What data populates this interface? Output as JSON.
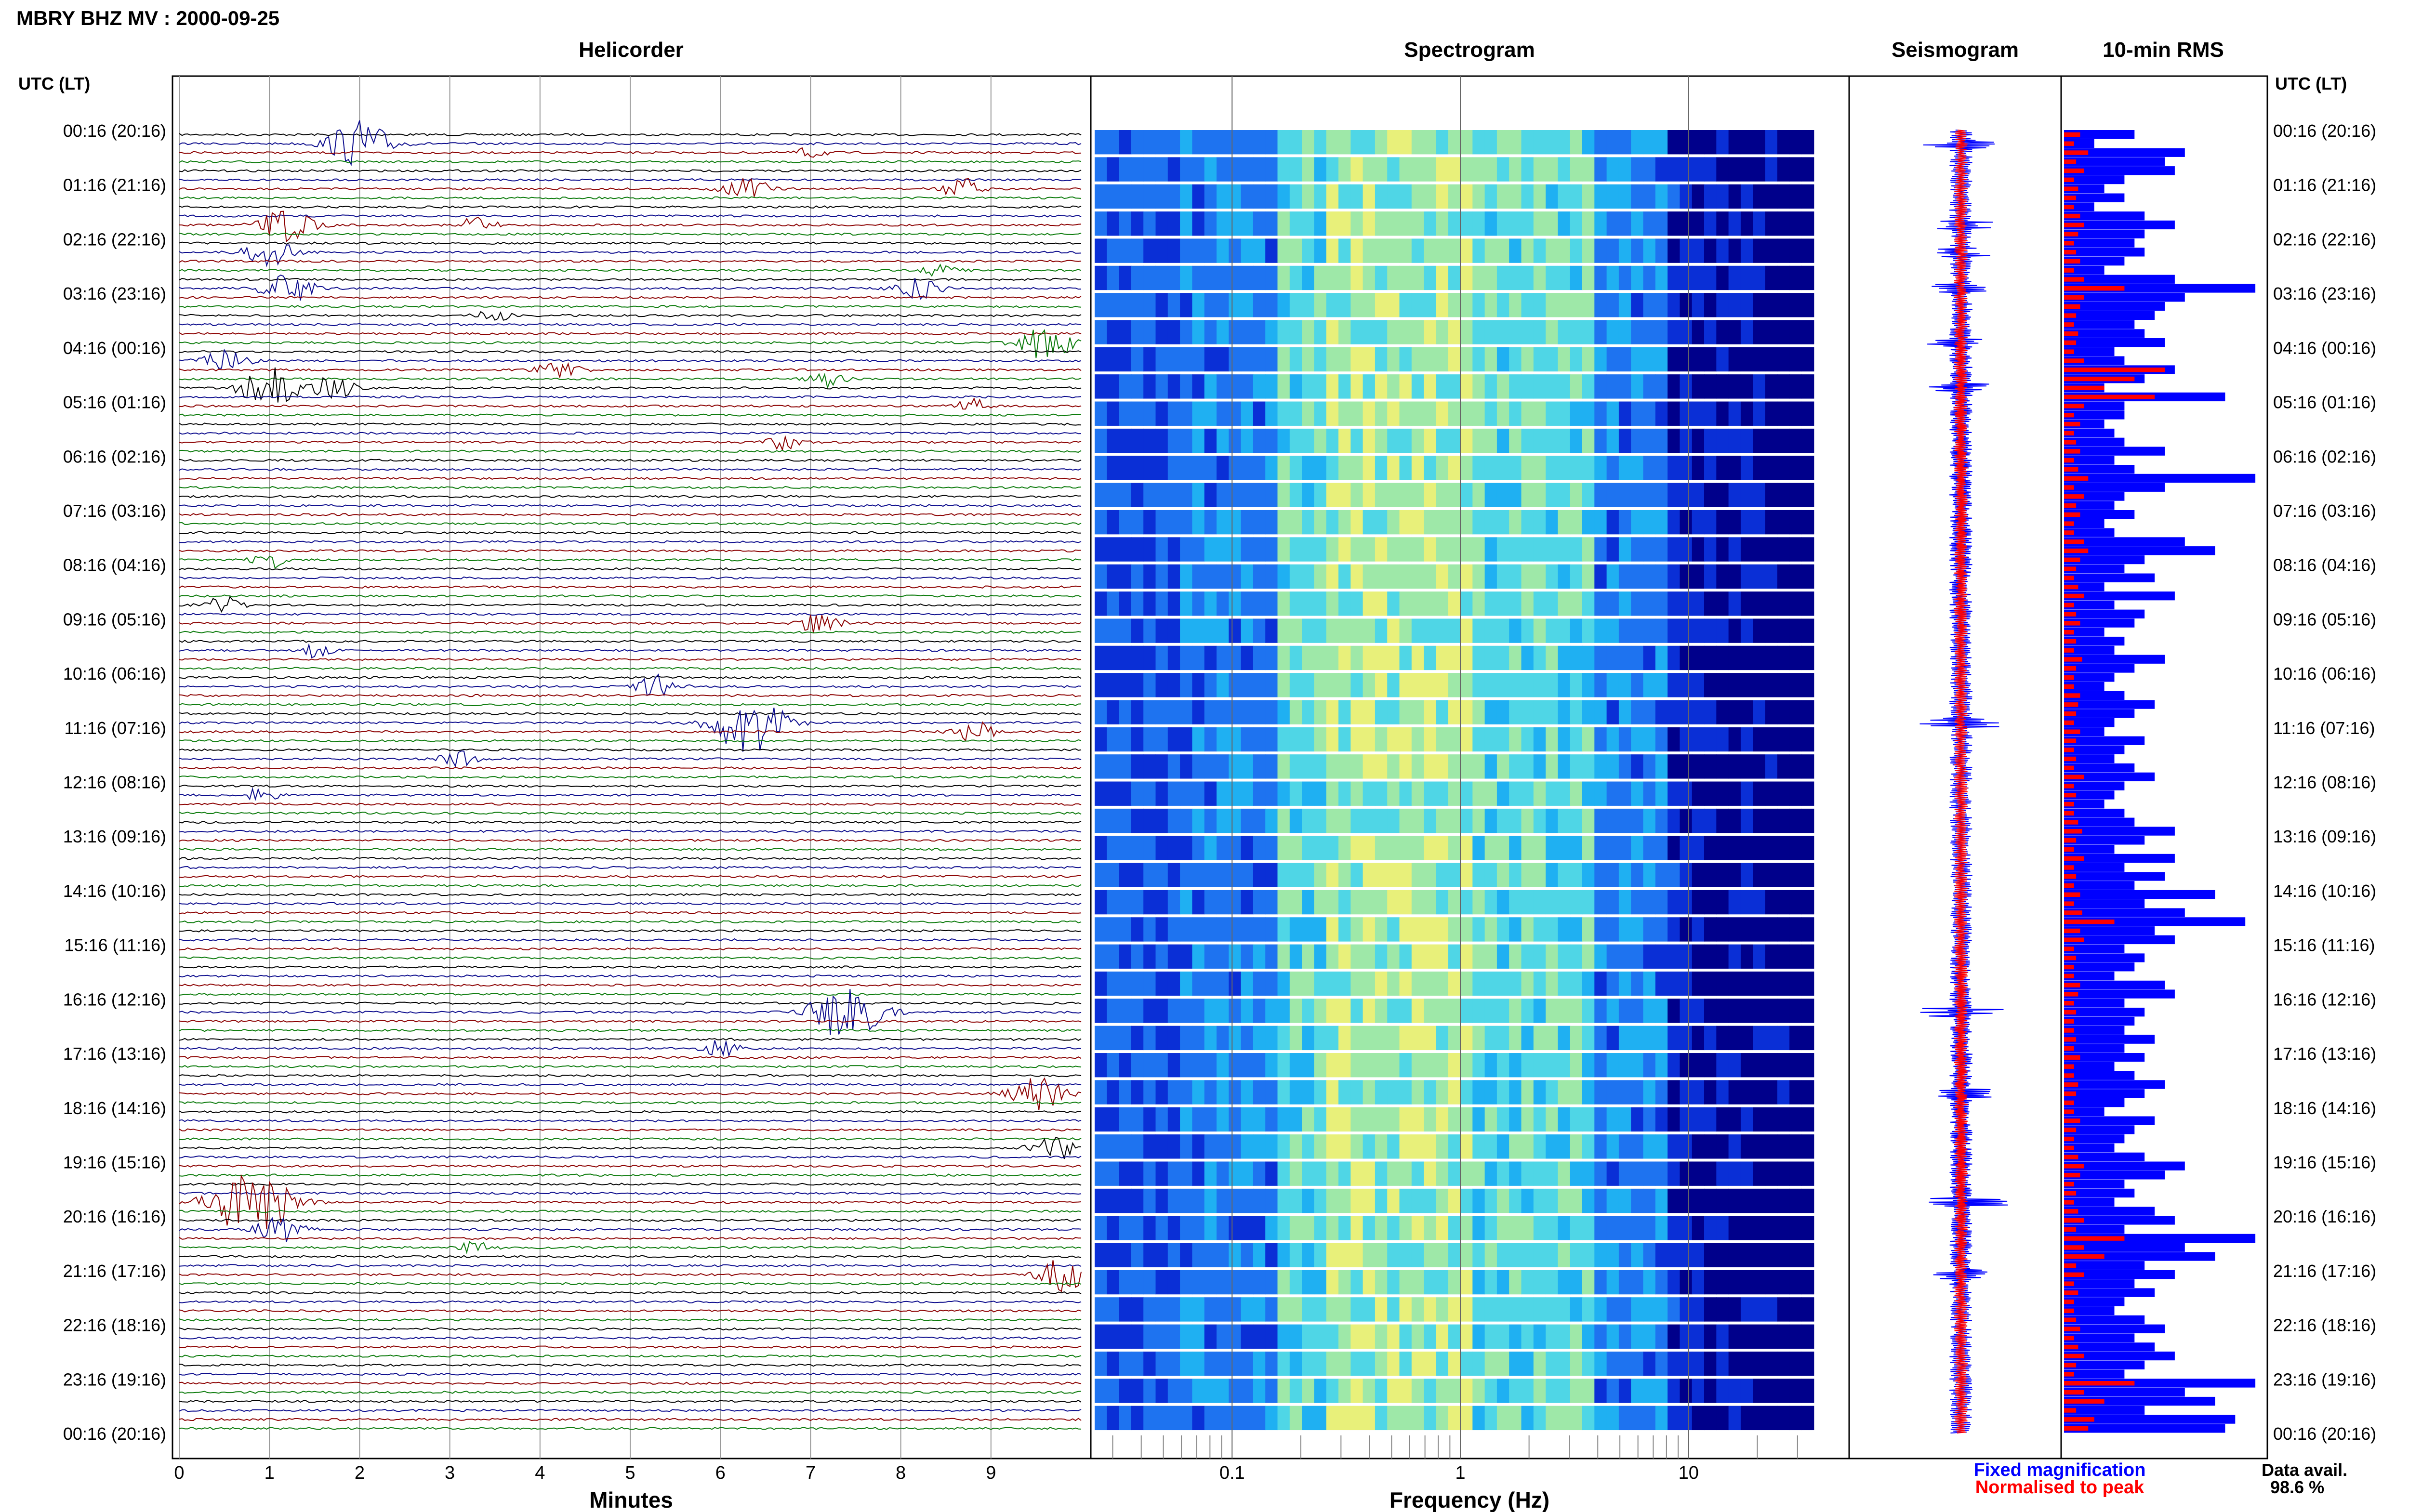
{
  "header": {
    "title": "MBRY BHZ MV : 2000-09-25",
    "utc_label": "UTC (LT)",
    "utc_label_right": "UTC (LT)"
  },
  "panels": {
    "helicorder_title": "Helicorder",
    "spectrogram_title": "Spectrogram",
    "seismogram_title": "Seismogram",
    "rms_title": "10-min RMS"
  },
  "axes": {
    "helicorder_xlabel": "Minutes",
    "spectrogram_xlabel": "Frequency (Hz)"
  },
  "legend": {
    "fixed_label": "Fixed magnification",
    "normalised_label": "Normalised to peak",
    "fixed_color": "#0000ff",
    "normalised_color": "#ff0000"
  },
  "data_avail": {
    "label": "Data avail.",
    "value": "98.6 %"
  },
  "colors": {
    "trace_cycle": [
      "#000000",
      "#0b0b8c",
      "#8b0000",
      "#0a7a0a"
    ],
    "spectrogram_low": "#00008b",
    "spectrogram_mid": "#00bfff",
    "spectrogram_high": "#ffff66"
  },
  "chart_data": [
    {
      "type": "line",
      "title": "Helicorder",
      "xlabel": "Minutes",
      "x_ticks": [
        "0",
        "1",
        "2",
        "3",
        "4",
        "5",
        "6",
        "7",
        "8",
        "9"
      ],
      "xlim": [
        0,
        10
      ],
      "row_ticks": [
        "00:16 (20:16)",
        "01:16 (21:16)",
        "02:16 (22:16)",
        "03:16 (23:16)",
        "04:16 (00:16)",
        "05:16 (01:16)",
        "06:16 (02:16)",
        "07:16 (03:16)",
        "08:16 (04:16)",
        "09:16 (05:16)",
        "10:16 (06:16)",
        "11:16 (07:16)",
        "12:16 (08:16)",
        "13:16 (09:16)",
        "14:16 (10:16)",
        "15:16 (11:16)",
        "16:16 (12:16)",
        "17:16 (13:16)",
        "18:16 (14:16)",
        "19:16 (15:16)",
        "20:16 (16:16)",
        "21:16 (17:16)",
        "22:16 (18:16)",
        "23:16 (19:16)",
        "00:16 (20:16)"
      ],
      "rows_per_hour": 6,
      "row_count": 144,
      "events": [
        {
          "row": 1,
          "minute": 2.0,
          "amplitude": 3.5
        },
        {
          "row": 2,
          "minute": 7.0,
          "amplitude": 0.8
        },
        {
          "row": 6,
          "minute": 6.3,
          "amplitude": 1.8
        },
        {
          "row": 6,
          "minute": 8.7,
          "amplitude": 1.6
        },
        {
          "row": 10,
          "minute": 1.2,
          "amplitude": 2.6
        },
        {
          "row": 10,
          "minute": 3.3,
          "amplitude": 1.2
        },
        {
          "row": 13,
          "minute": 1.0,
          "amplitude": 2.2
        },
        {
          "row": 15,
          "minute": 8.5,
          "amplitude": 1.3
        },
        {
          "row": 17,
          "minute": 1.2,
          "amplitude": 2.4
        },
        {
          "row": 17,
          "minute": 8.2,
          "amplitude": 1.8
        },
        {
          "row": 20,
          "minute": 3.5,
          "amplitude": 1.0
        },
        {
          "row": 23,
          "minute": 9.6,
          "amplitude": 2.6
        },
        {
          "row": 25,
          "minute": 0.5,
          "amplitude": 2.0
        },
        {
          "row": 26,
          "minute": 4.2,
          "amplitude": 1.6
        },
        {
          "row": 27,
          "minute": 7.2,
          "amplitude": 1.2
        },
        {
          "row": 28,
          "minute": 1.0,
          "amplitude": 3.0
        },
        {
          "row": 28,
          "minute": 1.7,
          "amplitude": 1.8
        },
        {
          "row": 30,
          "minute": 8.8,
          "amplitude": 1.0
        },
        {
          "row": 34,
          "minute": 6.7,
          "amplitude": 1.0
        },
        {
          "row": 47,
          "minute": 1.0,
          "amplitude": 1.2
        },
        {
          "row": 52,
          "minute": 0.5,
          "amplitude": 1.3
        },
        {
          "row": 54,
          "minute": 7.1,
          "amplitude": 1.6
        },
        {
          "row": 57,
          "minute": 1.5,
          "amplitude": 1.0
        },
        {
          "row": 61,
          "minute": 5.3,
          "amplitude": 1.7
        },
        {
          "row": 65,
          "minute": 6.3,
          "amplitude": 4.5
        },
        {
          "row": 66,
          "minute": 8.8,
          "amplitude": 1.6
        },
        {
          "row": 69,
          "minute": 3.1,
          "amplitude": 1.2
        },
        {
          "row": 73,
          "minute": 0.9,
          "amplitude": 1.0
        },
        {
          "row": 97,
          "minute": 7.4,
          "amplitude": 4.2
        },
        {
          "row": 101,
          "minute": 6.0,
          "amplitude": 1.2
        },
        {
          "row": 106,
          "minute": 9.5,
          "amplitude": 2.6
        },
        {
          "row": 112,
          "minute": 9.7,
          "amplitude": 2.0
        },
        {
          "row": 118,
          "minute": 0.8,
          "amplitude": 5.0
        },
        {
          "row": 121,
          "minute": 1.1,
          "amplitude": 2.0
        },
        {
          "row": 123,
          "minute": 3.3,
          "amplitude": 1.0
        },
        {
          "row": 126,
          "minute": 9.8,
          "amplitude": 2.4
        }
      ]
    },
    {
      "type": "heatmap",
      "title": "Spectrogram",
      "xlabel": "Frequency (Hz)",
      "x_scale": "log",
      "xlim": [
        0.025,
        40
      ],
      "x_ticks": [
        "0.1",
        "1",
        "10"
      ],
      "band_count": 48
    },
    {
      "type": "line",
      "title": "Seismogram",
      "series": [
        {
          "name": "Fixed magnification",
          "color": "#0000ff"
        },
        {
          "name": "Normalised to peak",
          "color": "#ff0000"
        }
      ],
      "row_count": 144
    },
    {
      "type": "bar",
      "title": "10-min RMS",
      "orientation": "horizontal",
      "series": [
        {
          "name": "Fixed magnification",
          "color": "#0000ff",
          "values": [
            0.35,
            0.15,
            0.6,
            0.5,
            0.55,
            0.3,
            0.2,
            0.3,
            0.15,
            0.4,
            0.55,
            0.4,
            0.35,
            0.4,
            0.3,
            0.2,
            0.55,
            0.95,
            0.6,
            0.5,
            0.45,
            0.35,
            0.4,
            0.5,
            0.25,
            0.3,
            0.55,
            0.4,
            0.2,
            0.8,
            0.3,
            0.3,
            0.2,
            0.25,
            0.3,
            0.5,
            0.25,
            0.35,
            0.95,
            0.5,
            0.3,
            0.25,
            0.35,
            0.2,
            0.25,
            0.6,
            0.75,
            0.4,
            0.3,
            0.45,
            0.2,
            0.55,
            0.25,
            0.4,
            0.35,
            0.2,
            0.3,
            0.25,
            0.5,
            0.35,
            0.25,
            0.2,
            0.3,
            0.45,
            0.35,
            0.25,
            0.2,
            0.4,
            0.3,
            0.25,
            0.35,
            0.45,
            0.3,
            0.25,
            0.2,
            0.3,
            0.35,
            0.55,
            0.4,
            0.25,
            0.55,
            0.3,
            0.5,
            0.35,
            0.75,
            0.4,
            0.6,
            0.9,
            0.45,
            0.55,
            0.3,
            0.4,
            0.35,
            0.25,
            0.5,
            0.55,
            0.3,
            0.4,
            0.35,
            0.3,
            0.45,
            0.3,
            0.4,
            0.25,
            0.35,
            0.5,
            0.4,
            0.3,
            0.2,
            0.45,
            0.35,
            0.3,
            0.25,
            0.4,
            0.6,
            0.5,
            0.3,
            0.35,
            0.25,
            0.45,
            0.55,
            0.3,
            0.95,
            0.6,
            0.75,
            0.4,
            0.55,
            0.35,
            0.45,
            0.3,
            0.25,
            0.4,
            0.5,
            0.35,
            0.45,
            0.55,
            0.4,
            0.3,
            0.95,
            0.6,
            0.75,
            0.4,
            0.85,
            0.8
          ]
        },
        {
          "name": "Normalised to peak",
          "color": "#ff0000",
          "values": [
            0.08,
            0.05,
            0.12,
            0.06,
            0.1,
            0.05,
            0.07,
            0.06,
            0.05,
            0.08,
            0.1,
            0.07,
            0.05,
            0.06,
            0.08,
            0.05,
            0.1,
            0.3,
            0.1,
            0.08,
            0.06,
            0.05,
            0.07,
            0.06,
            0.05,
            0.1,
            0.5,
            0.35,
            0.2,
            0.45,
            0.1,
            0.05,
            0.08,
            0.05,
            0.06,
            0.08,
            0.05,
            0.07,
            0.12,
            0.05,
            0.1,
            0.06,
            0.08,
            0.05,
            0.05,
            0.1,
            0.12,
            0.08,
            0.06,
            0.05,
            0.07,
            0.1,
            0.05,
            0.06,
            0.08,
            0.05,
            0.06,
            0.05,
            0.09,
            0.06,
            0.05,
            0.05,
            0.08,
            0.07,
            0.06,
            0.05,
            0.08,
            0.06,
            0.05,
            0.06,
            0.05,
            0.1,
            0.05,
            0.06,
            0.05,
            0.05,
            0.07,
            0.09,
            0.06,
            0.05,
            0.1,
            0.05,
            0.06,
            0.05,
            0.08,
            0.05,
            0.09,
            0.25,
            0.08,
            0.1,
            0.05,
            0.06,
            0.05,
            0.05,
            0.08,
            0.07,
            0.05,
            0.06,
            0.05,
            0.05,
            0.06,
            0.05,
            0.08,
            0.05,
            0.05,
            0.07,
            0.06,
            0.05,
            0.05,
            0.08,
            0.06,
            0.05,
            0.05,
            0.07,
            0.1,
            0.08,
            0.05,
            0.06,
            0.05,
            0.07,
            0.1,
            0.06,
            0.3,
            0.1,
            0.2,
            0.06,
            0.1,
            0.05,
            0.07,
            0.05,
            0.05,
            0.06,
            0.08,
            0.05,
            0.07,
            0.1,
            0.06,
            0.05,
            0.35,
            0.1,
            0.2,
            0.06,
            0.15,
            0.12
          ]
        }
      ]
    }
  ]
}
